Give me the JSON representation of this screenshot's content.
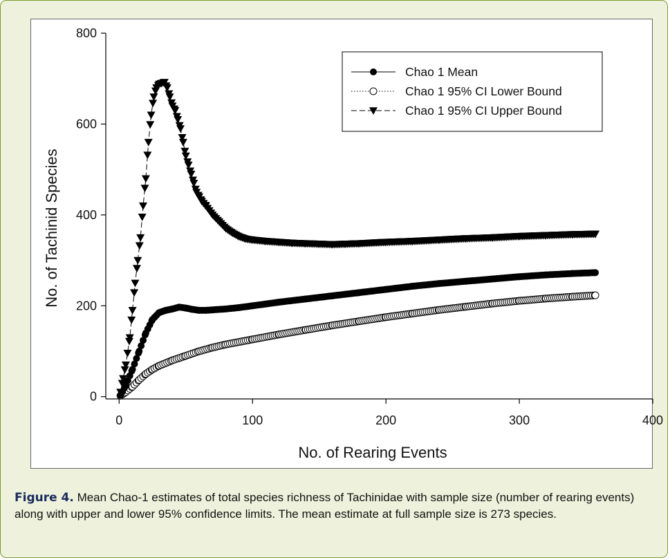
{
  "chart_data": {
    "type": "line",
    "xlabel": "No. of Rearing Events",
    "ylabel": "No. of Tachinid Species",
    "xlim": [
      -10,
      400
    ],
    "ylim": [
      -5,
      800
    ],
    "xticks": [
      0,
      100,
      200,
      300,
      400
    ],
    "yticks": [
      0,
      200,
      400,
      600,
      800
    ],
    "grid": false,
    "legend_position": "top-right",
    "series": [
      {
        "name": "Chao 1 Mean",
        "marker": "filled-circle",
        "line": "solid",
        "x": [
          1,
          5,
          10,
          15,
          20,
          25,
          30,
          35,
          40,
          45,
          50,
          55,
          60,
          65,
          70,
          80,
          90,
          100,
          110,
          120,
          140,
          160,
          180,
          200,
          220,
          240,
          260,
          280,
          300,
          320,
          340,
          357
        ],
        "y": [
          3,
          25,
          60,
          100,
          140,
          170,
          185,
          190,
          193,
          197,
          195,
          192,
          190,
          190,
          191,
          193,
          196,
          200,
          204,
          208,
          215,
          222,
          229,
          236,
          243,
          249,
          254,
          259,
          264,
          268,
          271,
          273
        ]
      },
      {
        "name": "Chao 1 95% CI Lower Bound",
        "marker": "open-circle",
        "line": "dotted",
        "x": [
          1,
          5,
          10,
          15,
          20,
          25,
          30,
          40,
          50,
          60,
          70,
          80,
          100,
          120,
          140,
          160,
          180,
          200,
          220,
          240,
          260,
          280,
          300,
          320,
          340,
          357
        ],
        "y": [
          2,
          10,
          22,
          37,
          50,
          60,
          68,
          80,
          90,
          100,
          108,
          115,
          126,
          137,
          147,
          157,
          166,
          175,
          183,
          191,
          198,
          205,
          211,
          216,
          220,
          223
        ]
      },
      {
        "name": "Chao 1 95% CI Upper Bound",
        "marker": "filled-down-triangle",
        "line": "dashed",
        "x": [
          1,
          3,
          5,
          8,
          10,
          12,
          14,
          16,
          18,
          20,
          22,
          24,
          26,
          28,
          30,
          32,
          34,
          36,
          38,
          40,
          42,
          44,
          46,
          48,
          50,
          52,
          54,
          56,
          58,
          60,
          62,
          65,
          70,
          75,
          80,
          85,
          90,
          95,
          100,
          110,
          120,
          130,
          140,
          150,
          160,
          170,
          180,
          200,
          220,
          240,
          260,
          280,
          300,
          320,
          340,
          357
        ],
        "y": [
          10,
          40,
          70,
          130,
          190,
          250,
          300,
          350,
          420,
          480,
          560,
          620,
          660,
          680,
          688,
          690,
          692,
          680,
          660,
          640,
          630,
          610,
          590,
          560,
          530,
          510,
          490,
          470,
          450,
          440,
          430,
          420,
          400,
          385,
          370,
          360,
          352,
          347,
          345,
          342,
          340,
          338,
          337,
          336,
          335,
          336,
          337,
          340,
          342,
          345,
          348,
          350,
          353,
          355,
          357,
          358
        ]
      }
    ]
  },
  "caption": {
    "label": "Figure 4.",
    "text": " Mean Chao-1 estimates of total species richness of Tachinidae with sample size (number of rearing events) along with upper and lower 95% confidence limits. The mean estimate at full sample size is 273 species."
  }
}
